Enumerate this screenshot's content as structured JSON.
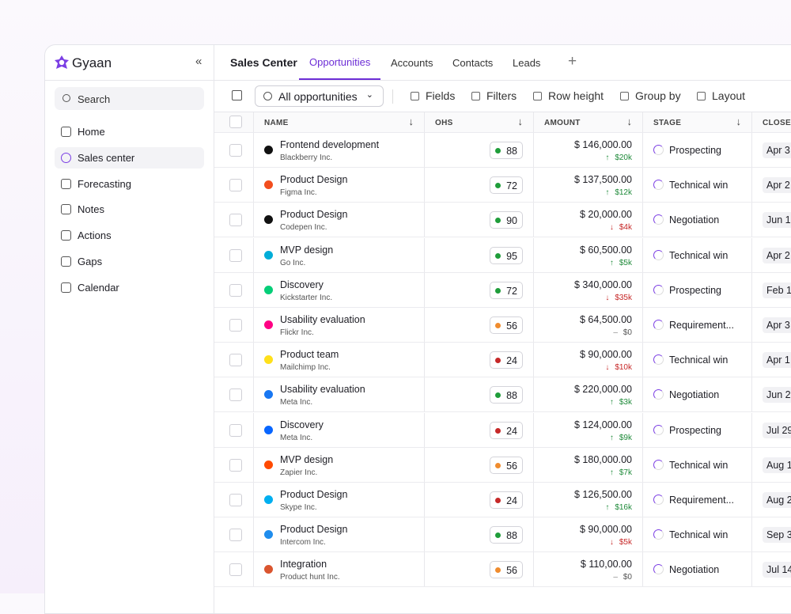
{
  "sidebar": {
    "brand": "Gyaan",
    "search": "Search",
    "nav": [
      "Home",
      "Sales center",
      "Forecasting",
      "Notes",
      "Actions",
      "Gaps",
      "Calendar"
    ],
    "active": 1
  },
  "header": {
    "title": "Sales Center",
    "tabs": [
      "Opportunities",
      "Accounts",
      "Contacts",
      "Leads"
    ],
    "active": 0
  },
  "toolbar": {
    "view": "All opportunities",
    "actions": [
      "Fields",
      "Filters",
      "Row height",
      "Group by",
      "Layout"
    ]
  },
  "table": {
    "columns": [
      "NAME",
      "OHS",
      "AMOUNT",
      "STAGE",
      "CLOSE DATE"
    ],
    "rows": [
      {
        "name": "Frontend development",
        "company": "Blackberry Inc.",
        "logo_color": "#111111",
        "ohs": 88,
        "ohs_color": "#1f9d3a",
        "amount": "$ 146,000.00",
        "change": "$20k",
        "trend": "up",
        "stage": "Prospecting",
        "close": "Apr 3"
      },
      {
        "name": "Product Design",
        "company": "Figma Inc.",
        "logo_color": "#f24e1e",
        "ohs": 72,
        "ohs_color": "#1f9d3a",
        "amount": "$ 137,500.00",
        "change": "$12k",
        "trend": "up",
        "stage": "Technical win",
        "close": "Apr 2"
      },
      {
        "name": "Product Design",
        "company": "Codepen Inc.",
        "logo_color": "#111111",
        "ohs": 90,
        "ohs_color": "#1f9d3a",
        "amount": "$ 20,000.00",
        "change": "$4k",
        "trend": "down",
        "stage": "Negotiation",
        "close": "Jun 1"
      },
      {
        "name": "MVP design",
        "company": "Go Inc.",
        "logo_color": "#00add8",
        "ohs": 95,
        "ohs_color": "#1f9d3a",
        "amount": "$ 60,500.00",
        "change": "$5k",
        "trend": "up",
        "stage": "Technical win",
        "close": "Apr 2"
      },
      {
        "name": "Discovery",
        "company": "Kickstarter Inc.",
        "logo_color": "#05ce78",
        "ohs": 72,
        "ohs_color": "#1f9d3a",
        "amount": "$ 340,000.00",
        "change": "$35k",
        "trend": "down",
        "stage": "Prospecting",
        "close": "Feb 1"
      },
      {
        "name": "Usability evaluation",
        "company": "Flickr Inc.",
        "logo_color": "#ff0084",
        "ohs": 56,
        "ohs_color": "#f08c2e",
        "amount": "$ 64,500.00",
        "change": "$0",
        "trend": "flat",
        "stage": "Requirement...",
        "close": "Apr 3"
      },
      {
        "name": "Product team",
        "company": "Mailchimp Inc.",
        "logo_color": "#ffe01b",
        "ohs": 24,
        "ohs_color": "#c62828",
        "amount": "$ 90,000.00",
        "change": "$10k",
        "trend": "down",
        "stage": "Technical win",
        "close": "Apr 1"
      },
      {
        "name": "Usability evaluation",
        "company": "Meta Inc.",
        "logo_color": "#1877f2",
        "ohs": 88,
        "ohs_color": "#1f9d3a",
        "amount": "$ 220,000.00",
        "change": "$3k",
        "trend": "up",
        "stage": "Negotiation",
        "close": "Jun 2"
      },
      {
        "name": "Discovery",
        "company": "Meta Inc.",
        "logo_color": "#0866ff",
        "ohs": 24,
        "ohs_color": "#c62828",
        "amount": "$ 124,000.00",
        "change": "$9k",
        "trend": "up",
        "stage": "Prospecting",
        "close": "Jul 29"
      },
      {
        "name": "MVP design",
        "company": "Zapier Inc.",
        "logo_color": "#ff4a00",
        "ohs": 56,
        "ohs_color": "#f08c2e",
        "amount": "$ 180,000.00",
        "change": "$7k",
        "trend": "up",
        "stage": "Technical win",
        "close": "Aug 1"
      },
      {
        "name": "Product Design",
        "company": "Skype Inc.",
        "logo_color": "#00aff0",
        "ohs": 24,
        "ohs_color": "#c62828",
        "amount": "$ 126,500.00",
        "change": "$16k",
        "trend": "up",
        "stage": "Requirement...",
        "close": "Aug 2"
      },
      {
        "name": "Product Design",
        "company": "Intercom Inc.",
        "logo_color": "#1f8ded",
        "ohs": 88,
        "ohs_color": "#1f9d3a",
        "amount": "$ 90,000.00",
        "change": "$5k",
        "trend": "down",
        "stage": "Technical win",
        "close": "Sep 3"
      },
      {
        "name": "Integration",
        "company": "Product hunt Inc.",
        "logo_color": "#da552f",
        "ohs": 56,
        "ohs_color": "#f08c2e",
        "amount": "$ 110,00.00",
        "change": "$0",
        "trend": "flat",
        "stage": "Negotiation",
        "close": "Jul 14"
      }
    ]
  }
}
